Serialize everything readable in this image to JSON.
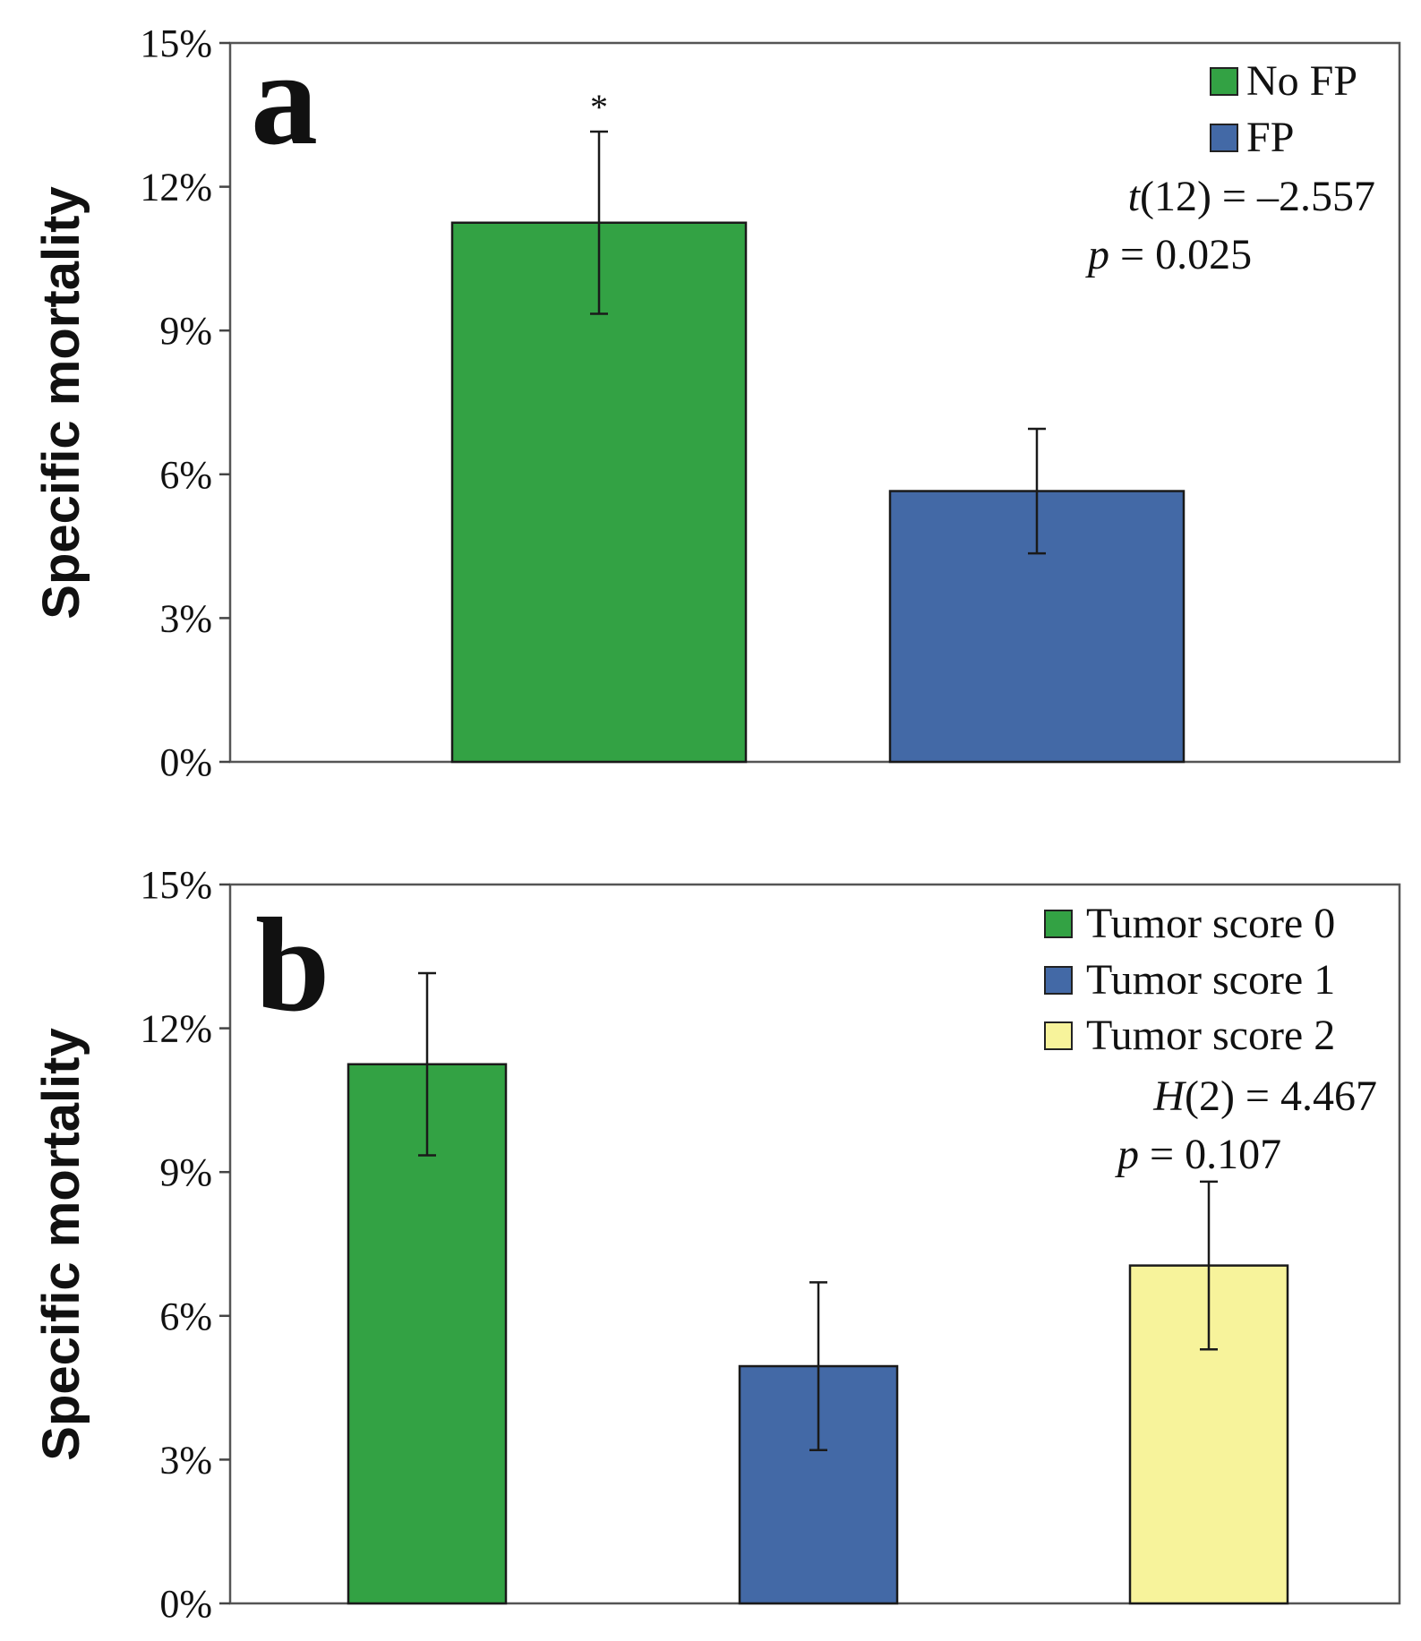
{
  "chart_data": [
    {
      "type": "bar",
      "panel_letter": "a",
      "ylabel": "Specific mortality",
      "ylim": [
        0,
        15
      ],
      "yticks": [
        0,
        3,
        6,
        9,
        12,
        15
      ],
      "yticklabels": [
        "0%",
        "3%",
        "6%",
        "9%",
        "12%",
        "15%"
      ],
      "categories": [
        "No FP",
        "FP"
      ],
      "values": [
        11.25,
        5.65
      ],
      "errors": [
        1.9,
        1.3
      ],
      "colors": [
        "#33a244",
        "#4369a6"
      ],
      "legend": [
        "No FP",
        "FP"
      ],
      "legend_position": "top-right",
      "significance_marker": "*",
      "stats": {
        "t_label": "t",
        "t_text": "(12) = –2.557",
        "p_label": "p",
        "p_text": " = 0.025"
      }
    },
    {
      "type": "bar",
      "panel_letter": "b",
      "ylabel": "Specific mortality",
      "ylim": [
        0,
        15
      ],
      "yticks": [
        0,
        3,
        6,
        9,
        12,
        15
      ],
      "yticklabels": [
        "0%",
        "3%",
        "6%",
        "9%",
        "12%",
        "15%"
      ],
      "categories": [
        "Tumor score 0",
        "Tumor score 1",
        "Tumor score 2"
      ],
      "values": [
        11.25,
        4.95,
        7.05
      ],
      "errors": [
        1.9,
        1.75,
        1.75
      ],
      "colors": [
        "#33a244",
        "#4369a6",
        "#f7f39b"
      ],
      "legend": [
        "Tumor score 0",
        "Tumor score 1",
        "Tumor score 2"
      ],
      "legend_position": "top-right",
      "stats": {
        "h_label": "H",
        "h_text": "(2) = 4.467",
        "p_label": "p",
        "p_text": " = 0.107"
      }
    }
  ]
}
